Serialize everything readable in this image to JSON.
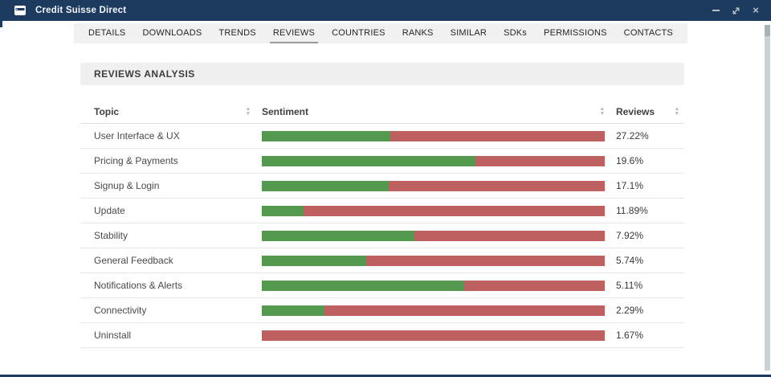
{
  "window": {
    "title": "Credit Suisse Direct",
    "icons": {
      "app": "app-window-icon",
      "minimize": "minimize-icon",
      "resize": "restore-diagonal-arrow-icon",
      "close": "close-icon"
    }
  },
  "tabs": {
    "items": [
      {
        "label": "DETAILS",
        "active": false
      },
      {
        "label": "DOWNLOADS",
        "active": false
      },
      {
        "label": "TRENDS",
        "active": false
      },
      {
        "label": "REVIEWS",
        "active": true
      },
      {
        "label": "COUNTRIES",
        "active": false
      },
      {
        "label": "RANKS",
        "active": false
      },
      {
        "label": "SIMILAR",
        "active": false
      },
      {
        "label": "SDKs",
        "active": false
      },
      {
        "label": "PERMISSIONS",
        "active": false
      },
      {
        "label": "CONTACTS",
        "active": false
      }
    ]
  },
  "section": {
    "title": "REVIEWS ANALYSIS"
  },
  "table": {
    "headers": {
      "topic": "Topic",
      "sentiment": "Sentiment",
      "reviews": "Reviews"
    },
    "rows": [
      {
        "topic": "User Interface & UX",
        "positive_pct": 37.3,
        "negative_pct": 62.7,
        "reviews": "27.22%"
      },
      {
        "topic": "Pricing & Payments",
        "positive_pct": 62.2,
        "negative_pct": 37.8,
        "reviews": "19.6%"
      },
      {
        "topic": "Signup & Login",
        "positive_pct": 37.1,
        "negative_pct": 62.9,
        "reviews": "17.1%"
      },
      {
        "topic": "Update",
        "positive_pct": 11.9,
        "negative_pct": 88.1,
        "reviews": "11.89%"
      },
      {
        "topic": "Stability",
        "positive_pct": 44.6,
        "negative_pct": 55.4,
        "reviews": "7.92%"
      },
      {
        "topic": "General Feedback",
        "positive_pct": 30.5,
        "negative_pct": 69.5,
        "reviews": "5.74%"
      },
      {
        "topic": "Notifications & Alerts",
        "positive_pct": 58.7,
        "negative_pct": 41.3,
        "reviews": "5.11%"
      },
      {
        "topic": "Connectivity",
        "positive_pct": 18.1,
        "negative_pct": 81.9,
        "reviews": "2.29%"
      },
      {
        "topic": "Uninstall",
        "positive_pct": 0,
        "negative_pct": 100,
        "reviews": "1.67%"
      }
    ]
  },
  "chart_data": {
    "type": "bar",
    "subtype": "horizontal-stacked-sentiment",
    "categories": [
      "User Interface & UX",
      "Pricing & Payments",
      "Signup & Login",
      "Update",
      "Stability",
      "General Feedback",
      "Notifications & Alerts",
      "Connectivity",
      "Uninstall"
    ],
    "series": [
      {
        "name": "positive-sentiment",
        "color": "#539a4e",
        "values": [
          37.3,
          62.2,
          37.1,
          11.9,
          44.6,
          30.5,
          58.7,
          18.1,
          0
        ]
      },
      {
        "name": "negative-sentiment",
        "color": "#bf6060",
        "values": [
          62.7,
          37.8,
          62.9,
          88.1,
          55.4,
          69.5,
          41.3,
          81.9,
          100
        ]
      }
    ],
    "reviews_share_labels": [
      "27.22%",
      "19.6%",
      "17.1%",
      "11.89%",
      "7.92%",
      "5.74%",
      "5.11%",
      "2.29%",
      "1.67%"
    ],
    "title": "REVIEWS ANALYSIS",
    "xlabel": "Sentiment",
    "ylabel": "Topic",
    "xlim": [
      0,
      100
    ],
    "grid": false,
    "legend": false
  },
  "colors": {
    "titlebar": "#1c3b5e",
    "positive": "#539a4e",
    "negative": "#bf6060",
    "tabbar_bg": "#f1f1f1",
    "section_bg": "#f0f0f0",
    "scrollbar_track": "#ccd1d4"
  }
}
